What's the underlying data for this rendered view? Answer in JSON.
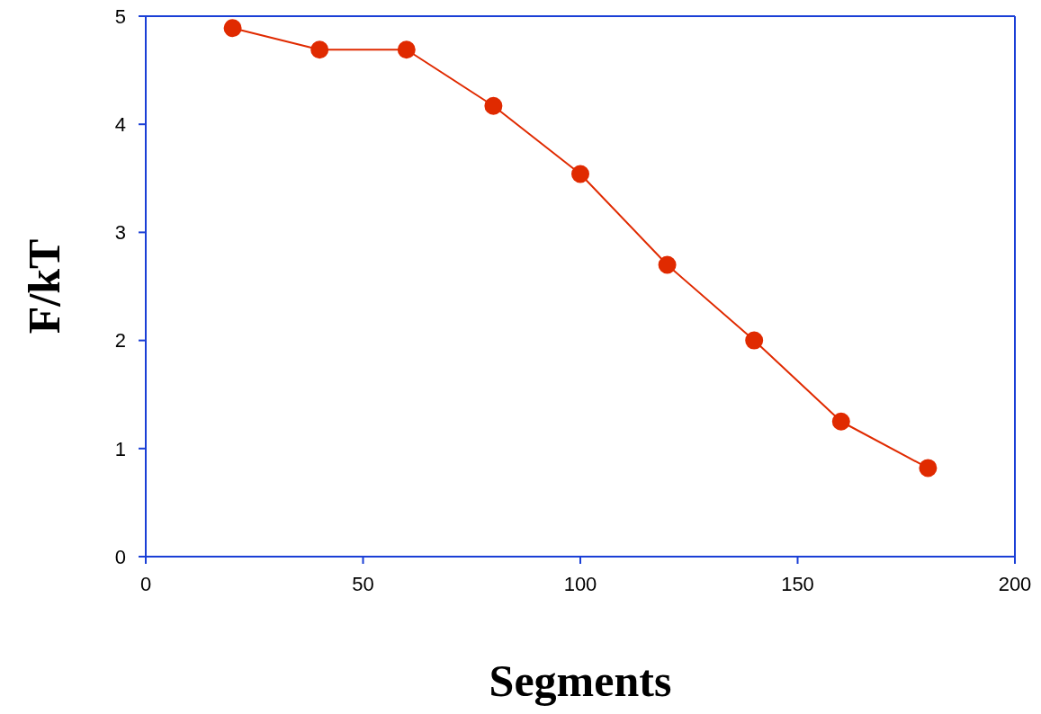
{
  "chart_data": {
    "type": "line",
    "xlabel": "Segments",
    "ylabel": "F/kT",
    "x": [
      20,
      40,
      60,
      80,
      100,
      120,
      140,
      160,
      180
    ],
    "series": [
      {
        "color": "#e02a00",
        "values": [
          4.89,
          4.69,
          4.69,
          4.17,
          3.54,
          2.7,
          2.0,
          1.25,
          0.82
        ]
      }
    ],
    "xlim": [
      0,
      200
    ],
    "xticks": [
      0,
      50,
      100,
      150,
      200
    ],
    "ylim": [
      0,
      5
    ],
    "yticks": [
      0,
      1,
      2,
      3,
      4,
      5
    ],
    "marker": "circle",
    "line_style": "solid",
    "grid": false,
    "legend": false
  }
}
